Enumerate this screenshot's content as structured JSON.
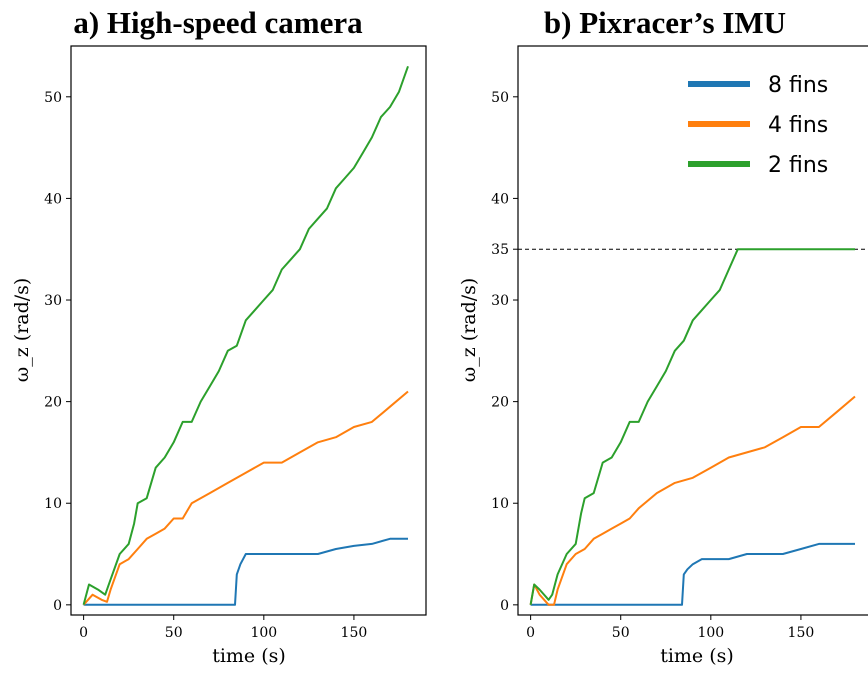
{
  "chart_data": [
    {
      "type": "line",
      "title": "a) High-speed camera",
      "xlabel": "time (s)",
      "ylabel": "ω_z (rad/s)",
      "xlim": [
        -7,
        190
      ],
      "ylim": [
        -1,
        55
      ],
      "xticks": [
        0,
        50,
        100,
        150
      ],
      "yticks": [
        0,
        10,
        20,
        30,
        40,
        50
      ],
      "grid": false,
      "legend": "none",
      "series": [
        {
          "name": "8 fins",
          "color": "#1f77b4",
          "x": [
            0,
            84,
            85,
            87,
            90,
            95,
            100,
            110,
            120,
            130,
            140,
            150,
            160,
            170,
            180
          ],
          "y": [
            0,
            0,
            3,
            4,
            5,
            5,
            5,
            5,
            5,
            5,
            5.5,
            5.8,
            6,
            6.5,
            6.5
          ]
        },
        {
          "name": "4 fins",
          "color": "#ff7f0e",
          "x": [
            0,
            5,
            10,
            13,
            15,
            20,
            25,
            30,
            35,
            40,
            45,
            50,
            55,
            60,
            70,
            80,
            90,
            100,
            110,
            120,
            130,
            140,
            150,
            160,
            170,
            180
          ],
          "y": [
            0,
            1,
            0.5,
            0.3,
            1.5,
            4,
            4.5,
            5.5,
            6.5,
            7,
            7.5,
            8.5,
            8.5,
            10,
            11,
            12,
            13,
            14,
            14,
            15,
            16,
            16.5,
            17.5,
            18,
            19.5,
            21
          ]
        },
        {
          "name": "2 fins",
          "color": "#2ca02c",
          "x": [
            0,
            3,
            8,
            12,
            15,
            20,
            25,
            28,
            30,
            35,
            40,
            45,
            50,
            55,
            60,
            65,
            70,
            75,
            80,
            85,
            90,
            95,
            100,
            105,
            110,
            115,
            120,
            125,
            130,
            135,
            140,
            145,
            150,
            155,
            160,
            165,
            170,
            175,
            180
          ],
          "y": [
            0,
            2,
            1.5,
            1,
            2.5,
            5,
            6,
            8,
            10,
            10.5,
            13.5,
            14.5,
            16,
            18,
            18,
            20,
            21.5,
            23,
            25,
            25.5,
            28,
            29,
            30,
            31,
            33,
            34,
            35,
            37,
            38,
            39,
            41,
            42,
            43,
            44.5,
            46,
            48,
            49,
            50.5,
            53
          ]
        }
      ]
    },
    {
      "type": "line",
      "title": "b) Pixracer’s IMU",
      "xlabel": "time (s)",
      "ylabel": "ω_z (rad/s)",
      "xlim": [
        -7,
        190
      ],
      "ylim": [
        -1,
        55
      ],
      "xticks": [
        0,
        50,
        100,
        150
      ],
      "yticks": [
        0,
        10,
        20,
        30,
        35,
        40,
        50
      ],
      "grid": false,
      "legend": "top-right",
      "reference_line": {
        "y": 35,
        "style": "dashed"
      },
      "series": [
        {
          "name": "8 fins",
          "color": "#1f77b4",
          "x": [
            0,
            84,
            85,
            87,
            90,
            95,
            100,
            110,
            120,
            130,
            140,
            150,
            160,
            170,
            180
          ],
          "y": [
            0,
            0,
            3,
            3.5,
            4,
            4.5,
            4.5,
            4.5,
            5,
            5,
            5,
            5.5,
            6,
            6,
            6
          ]
        },
        {
          "name": "4 fins",
          "color": "#ff7f0e",
          "x": [
            0,
            2,
            5,
            10,
            13,
            15,
            20,
            25,
            30,
            35,
            40,
            45,
            50,
            55,
            60,
            70,
            80,
            90,
            100,
            110,
            120,
            130,
            140,
            150,
            160,
            170,
            180
          ],
          "y": [
            0,
            2,
            1,
            0,
            0,
            1.5,
            4,
            5,
            5.5,
            6.5,
            7,
            7.5,
            8,
            8.5,
            9.5,
            11,
            12,
            12.5,
            13.5,
            14.5,
            15,
            15.5,
            16.5,
            17.5,
            17.5,
            19,
            20.5
          ]
        },
        {
          "name": "2 fins",
          "color": "#2ca02c",
          "x": [
            0,
            2,
            5,
            10,
            12,
            15,
            20,
            25,
            28,
            30,
            35,
            40,
            45,
            50,
            55,
            60,
            65,
            70,
            75,
            80,
            85,
            90,
            95,
            100,
            105,
            110,
            115,
            120,
            130,
            140,
            150,
            160,
            170,
            180
          ],
          "y": [
            0,
            2,
            1.5,
            0.5,
            1,
            3,
            5,
            6,
            9,
            10.5,
            11,
            14,
            14.5,
            16,
            18,
            18,
            20,
            21.5,
            23,
            25,
            26,
            28,
            29,
            30,
            31,
            33,
            35,
            35,
            35,
            35,
            35,
            35,
            35,
            35
          ]
        }
      ]
    }
  ]
}
